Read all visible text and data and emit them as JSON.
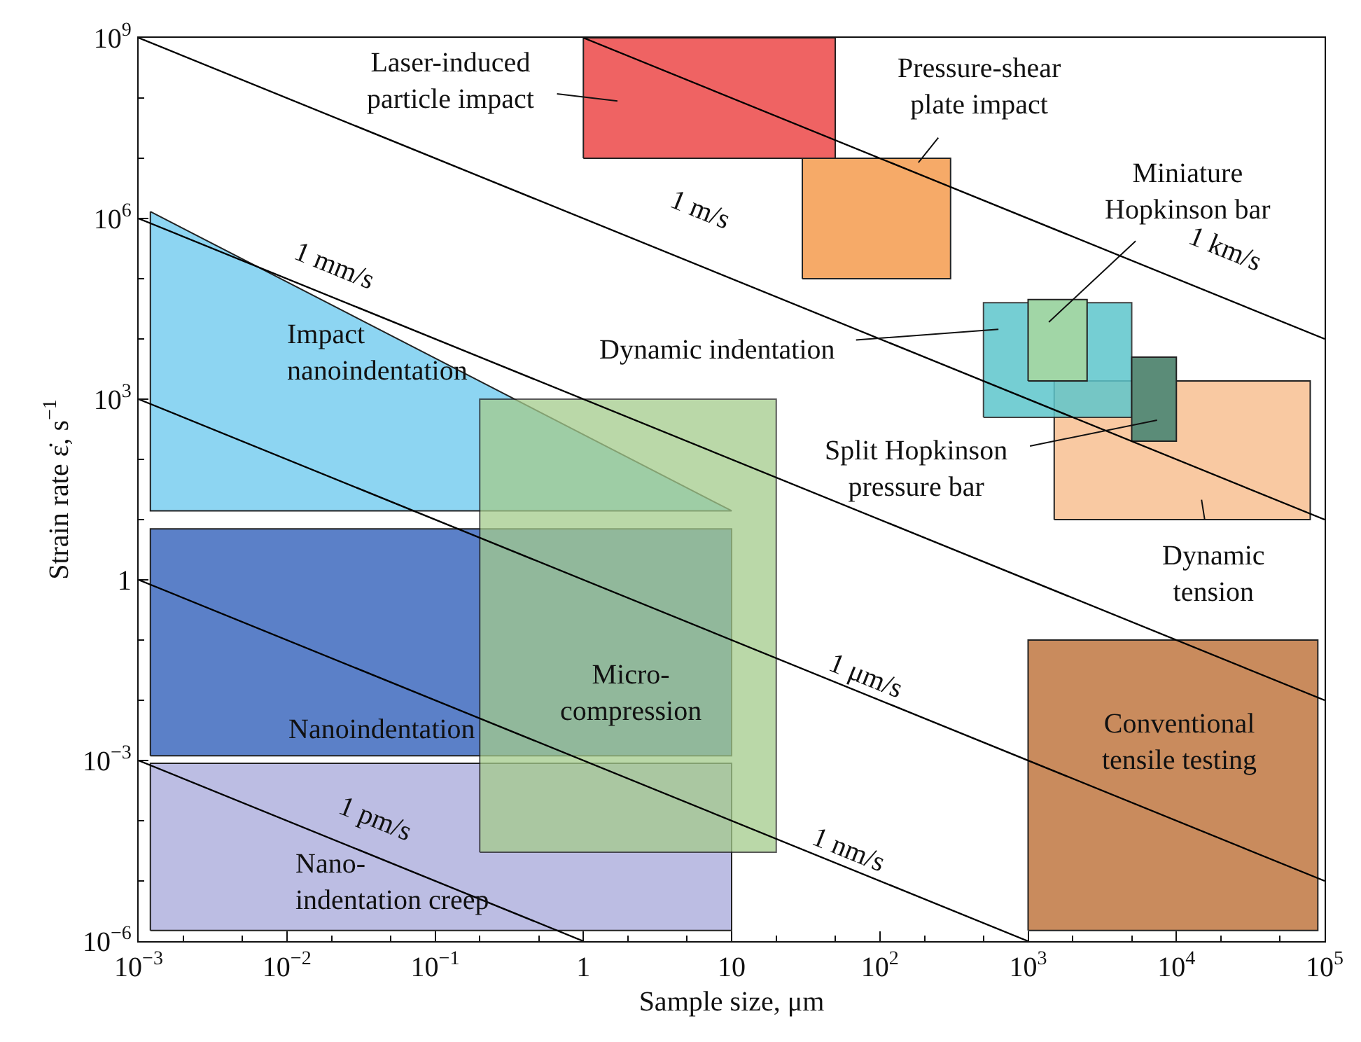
{
  "chart_data": {
    "type": "area",
    "xlabel": "Sample size, μm",
    "ylabel": "Strain rate ε̇, s$^{−1}$",
    "log": "xy",
    "xlim": [
      0.001,
      100000
    ],
    "ylim": [
      1e-06,
      1000000000
    ],
    "xticks": [
      {
        "value": 0.001,
        "label": "10$^{−3}$"
      },
      {
        "value": 0.01,
        "label": "10$^{−2}$"
      },
      {
        "value": 0.1,
        "label": "10$^{−1}$"
      },
      1,
      10,
      {
        "value": 100,
        "label": "10$^{2}$"
      },
      {
        "value": 1000,
        "label": "10$^{3}$"
      },
      {
        "value": 10000,
        "label": "10$^{4}$"
      },
      {
        "value": 100000,
        "label": "10$^{5}$"
      }
    ],
    "yticks": [
      {
        "value": 1e-06,
        "label": "10$^{−6}$"
      },
      {
        "value": 0.001,
        "label": "10$^{−3}$"
      },
      1,
      {
        "value": 1000,
        "label": "10$^{3}$"
      },
      {
        "value": 1000000,
        "label": "10$^{6}$"
      },
      {
        "value": 1000000000,
        "label": "10$^{9}$"
      }
    ],
    "series": [
      {
        "name": "Impact\nnanoindentation",
        "color": "#8dd5f2",
        "x": [
          0.0012,
          10,
          0.0012,
          0.0012
        ],
        "values": [
          1300000,
          14,
          14,
          1300000
        ]
      },
      {
        "name": "Nanoindentation",
        "color": "#5b80c8",
        "x": [
          0.0012,
          10,
          10,
          0.0012,
          0.0012
        ],
        "values": [
          0.0012,
          0.0012,
          7,
          7,
          0.0012
        ]
      },
      {
        "name": "Nano-\nindentation creep",
        "color": "#bcbde3",
        "x": [
          0.0012,
          10,
          10,
          0.0012,
          0.0012
        ],
        "values": [
          1.5e-06,
          1.5e-06,
          0.0009,
          0.0009,
          1.5e-06
        ]
      },
      {
        "name": "Micro-\ncompression",
        "color": "#a4cb8c",
        "x": [
          0.2,
          20,
          20,
          0.2,
          0.2
        ],
        "values": [
          3e-05,
          3e-05,
          1000,
          1000,
          3e-05
        ]
      },
      {
        "name": "Laser-induced\nparticle impact",
        "color": "#ef6363",
        "x": [
          1,
          50,
          50,
          1,
          1
        ],
        "values": [
          10000000,
          10000000,
          1000000000,
          1000000000,
          10000000
        ]
      },
      {
        "name": "Pressure-shear\nplate impact",
        "color": "#f6aa68",
        "x": [
          30,
          300,
          300,
          30,
          30
        ],
        "values": [
          100000,
          100000,
          10000000,
          10000000,
          100000
        ]
      },
      {
        "name": "Dynamic\ntension",
        "color": "#f9c9a2",
        "x": [
          1500,
          80000,
          80000,
          1500,
          1500
        ],
        "values": [
          10,
          10,
          2000,
          2000,
          10
        ]
      },
      {
        "name": "Dynamic indentation",
        "color": "#5ec6cc",
        "x": [
          500,
          5000,
          5000,
          500,
          500
        ],
        "values": [
          500,
          500,
          40000,
          40000,
          500
        ]
      },
      {
        "name": "Miniature\nHopkinson bar",
        "color": "#a1d6a6",
        "x": [
          1000,
          2500,
          2500,
          1000,
          1000
        ],
        "values": [
          2000,
          2000,
          45000,
          45000,
          2000
        ]
      },
      {
        "name": "Split Hopkinson\npressure bar",
        "color": "#5b8c78",
        "x": [
          5000,
          10000,
          10000,
          5000,
          5000
        ],
        "values": [
          200,
          200,
          5000,
          5000,
          200
        ]
      },
      {
        "name": "Conventional\ntensile testing",
        "color": "#c98b5d",
        "x": [
          1000,
          90000,
          90000,
          1000,
          1000
        ],
        "values": [
          1.5e-06,
          1.5e-06,
          0.1,
          0.1,
          1.5e-06
        ]
      },
      {
        "type": "line",
        "name": "1 km/s",
        "color": "#000000",
        "x": [
          1,
          100000
        ],
        "values": [
          1000000000,
          10000
        ]
      },
      {
        "type": "line",
        "name": "1 m/s",
        "color": "#000000",
        "x": [
          0.001,
          100000
        ],
        "values": [
          1000000000,
          10
        ]
      },
      {
        "type": "line",
        "name": "1 mm/s",
        "color": "#000000",
        "x": [
          0.001,
          100000
        ],
        "values": [
          1000000,
          0.01
        ]
      },
      {
        "type": "line",
        "name": "1 μm/s",
        "color": "#000000",
        "x": [
          0.001,
          100000
        ],
        "values": [
          1000,
          1e-05
        ]
      },
      {
        "type": "line",
        "name": "1 nm/s",
        "color": "#000000",
        "x": [
          0.001,
          1000
        ],
        "values": [
          1,
          1e-06
        ]
      },
      {
        "type": "line",
        "name": "1 pm/s",
        "color": "#000000",
        "x": [
          0.001,
          1
        ],
        "values": [
          0.001,
          1e-06
        ]
      }
    ]
  }
}
